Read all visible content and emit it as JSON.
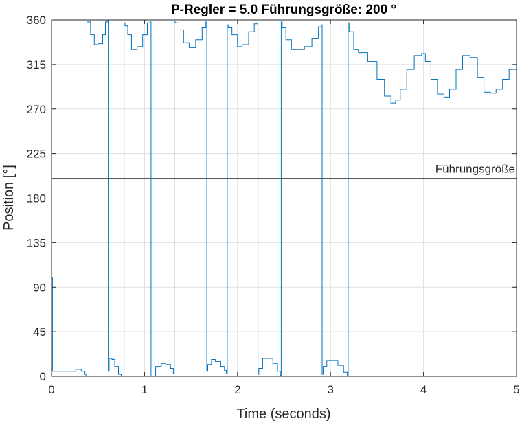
{
  "chart_data": {
    "type": "line",
    "title": "P-Regler =  5.0     Führungsgröße:  200 °",
    "xlabel": "Time (seconds)",
    "ylabel": "Position [°]",
    "xlim": [
      0,
      5
    ],
    "ylim": [
      0,
      360
    ],
    "xticks": [
      0,
      1,
      2,
      3,
      4,
      5
    ],
    "yticks": [
      0,
      45,
      90,
      135,
      180,
      225,
      270,
      315,
      360
    ],
    "grid": true,
    "colors": {
      "series": "#0072bd",
      "reference": "#404040",
      "axes": "#262626",
      "grid": "#dfdfdf"
    },
    "reference_line": {
      "label": "Führungsgröße",
      "y": 200
    },
    "series": [
      {
        "x": [
          0,
          0.01,
          0.02,
          0.1,
          0.2,
          0.25,
          0.26,
          0.32,
          0.36,
          0.37,
          0.38,
          0.42,
          0.46,
          0.5,
          0.55,
          0.58,
          0.6,
          0.61,
          0.62,
          0.65,
          0.68,
          0.72,
          0.75,
          0.77,
          0.78,
          0.79,
          0.82,
          0.86,
          0.92,
          0.98,
          1.03,
          1.06,
          1.07,
          1.08,
          1.12,
          1.18,
          1.23,
          1.28,
          1.31,
          1.32,
          1.33,
          1.37,
          1.42,
          1.48,
          1.55,
          1.62,
          1.66,
          1.67,
          1.68,
          1.72,
          1.76,
          1.82,
          1.86,
          1.88,
          1.89,
          1.9,
          1.94,
          2.0,
          2.05,
          2.12,
          2.18,
          2.21,
          2.22,
          2.23,
          2.27,
          2.32,
          2.38,
          2.43,
          2.46,
          2.47,
          2.48,
          2.52,
          2.58,
          2.65,
          2.72,
          2.8,
          2.87,
          2.9,
          2.91,
          2.92,
          2.96,
          3.02,
          3.08,
          3.14,
          3.18,
          3.19,
          3.2,
          3.25,
          3.3,
          3.4,
          3.5,
          3.58,
          3.65,
          3.7,
          3.75,
          3.82,
          3.9,
          3.98,
          4.02,
          4.08,
          4.15,
          4.22,
          4.28,
          4.35,
          4.42,
          4.5,
          4.58,
          4.65,
          4.72,
          4.78,
          4.85,
          4.92,
          5.0
        ],
        "y": [
          100,
          5,
          5,
          5,
          5,
          5,
          7,
          5,
          2,
          0,
          358,
          345,
          335,
          336,
          345,
          358,
          360,
          5,
          18,
          17,
          10,
          2,
          0,
          0,
          357,
          354,
          345,
          330,
          333,
          345,
          357,
          358,
          0,
          0,
          10,
          13,
          12,
          8,
          3,
          358,
          357,
          350,
          337,
          332,
          340,
          352,
          358,
          5,
          12,
          17,
          15,
          10,
          6,
          3,
          355,
          352,
          345,
          333,
          335,
          348,
          356,
          357,
          2,
          8,
          18,
          18,
          13,
          5,
          1,
          358,
          352,
          340,
          330,
          330,
          333,
          341,
          353,
          355,
          2,
          10,
          16,
          16,
          11,
          4,
          1,
          357,
          348,
          330,
          327,
          318,
          300,
          283,
          276,
          279,
          290,
          310,
          324,
          326,
          318,
          300,
          285,
          282,
          290,
          310,
          324,
          322,
          302,
          287,
          286,
          290,
          300,
          310,
          318
        ]
      }
    ]
  }
}
